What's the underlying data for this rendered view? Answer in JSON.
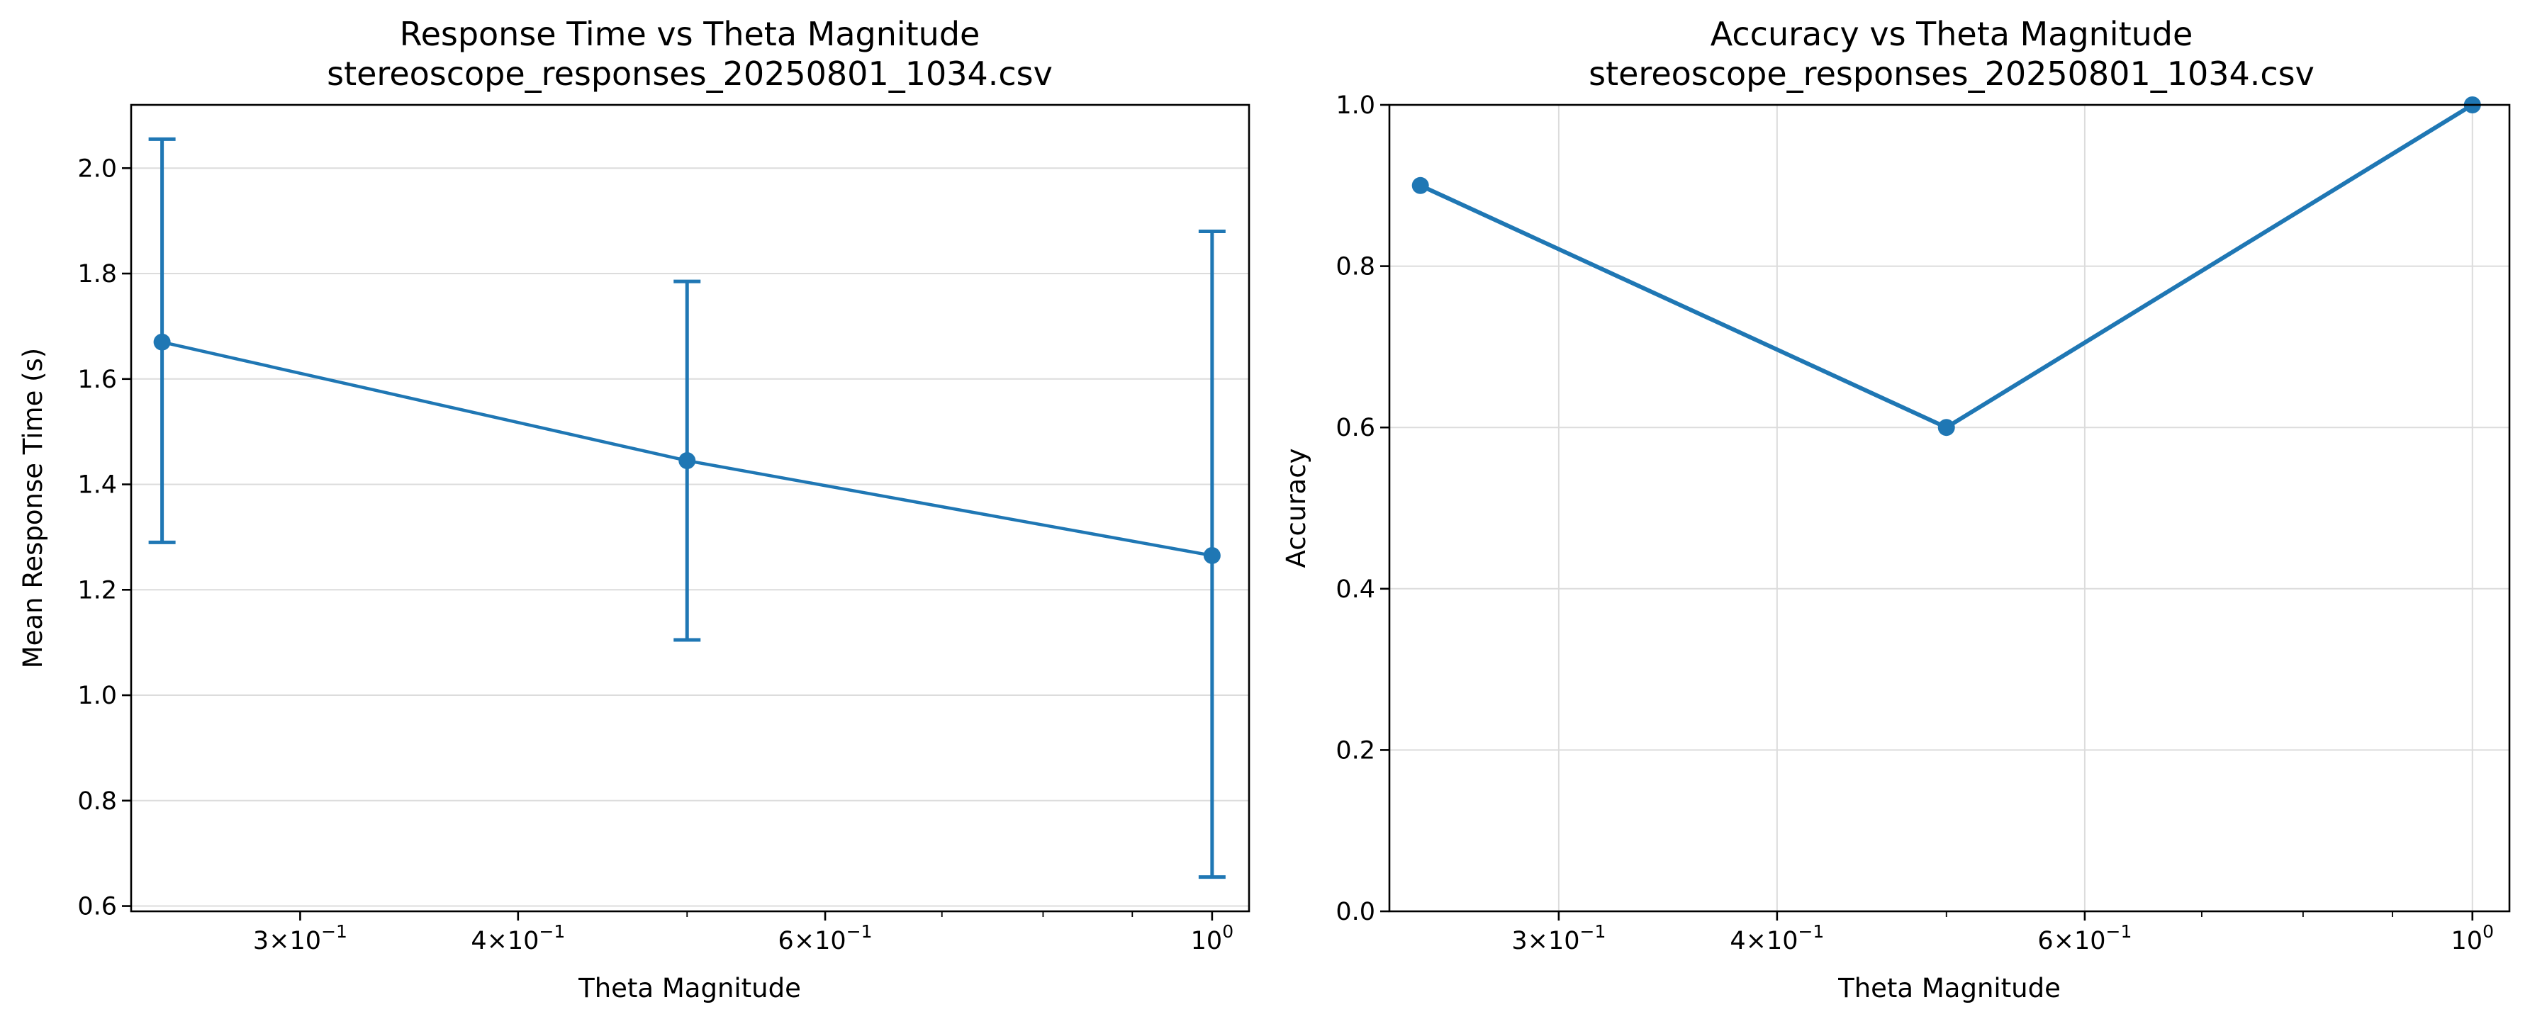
{
  "colors": {
    "series": "#1f77b4",
    "grid": "#dcdcdc",
    "axis": "#000000"
  },
  "chart_data": [
    {
      "type": "line",
      "variant": "errorbar",
      "title": "Response Time vs Theta Magnitude",
      "subtitle": "stereoscope_responses_20250801_1034.csv",
      "xlabel": "Theta Magnitude",
      "ylabel": "Mean Response Time (s)",
      "xscale": "log",
      "xlim": [
        0.24,
        1.05
      ],
      "ylim": [
        0.59,
        2.12
      ],
      "grid": "y-only",
      "x": [
        0.25,
        0.5,
        1.0
      ],
      "y": [
        1.67,
        1.445,
        1.265
      ],
      "error_low": [
        1.29,
        1.105,
        0.655
      ],
      "error_high": [
        2.055,
        1.785,
        1.88
      ],
      "xticks": [
        {
          "value": 0.3,
          "base": "3×10",
          "exp": "−1"
        },
        {
          "value": 0.4,
          "base": "4×10",
          "exp": "−1"
        },
        {
          "value": 0.6,
          "base": "6×10",
          "exp": "−1"
        },
        {
          "value": 1.0,
          "base": "10",
          "exp": "0"
        }
      ],
      "xminor": [
        0.5,
        0.7,
        0.8,
        0.9
      ],
      "yticks": [
        {
          "value": 0.6,
          "label": "0.6"
        },
        {
          "value": 0.8,
          "label": "0.8"
        },
        {
          "value": 1.0,
          "label": "1.0"
        },
        {
          "value": 1.2,
          "label": "1.2"
        },
        {
          "value": 1.4,
          "label": "1.4"
        },
        {
          "value": 1.6,
          "label": "1.6"
        },
        {
          "value": 1.8,
          "label": "1.8"
        },
        {
          "value": 2.0,
          "label": "2.0"
        }
      ]
    },
    {
      "type": "line",
      "title": "Accuracy vs Theta Magnitude",
      "subtitle": "stereoscope_responses_20250801_1034.csv",
      "xlabel": "Theta Magnitude",
      "ylabel": "Accuracy",
      "xscale": "log",
      "xlim": [
        0.24,
        1.05
      ],
      "ylim": [
        0.0,
        1.0
      ],
      "grid": "both",
      "x": [
        0.25,
        0.5,
        1.0
      ],
      "y": [
        0.9,
        0.6,
        1.0
      ],
      "xticks": [
        {
          "value": 0.3,
          "base": "3×10",
          "exp": "−1"
        },
        {
          "value": 0.4,
          "base": "4×10",
          "exp": "−1"
        },
        {
          "value": 0.6,
          "base": "6×10",
          "exp": "−1"
        },
        {
          "value": 1.0,
          "base": "10",
          "exp": "0"
        }
      ],
      "xminor": [
        0.5,
        0.7,
        0.8,
        0.9
      ],
      "yticks": [
        {
          "value": 0.0,
          "label": "0.0"
        },
        {
          "value": 0.2,
          "label": "0.2"
        },
        {
          "value": 0.4,
          "label": "0.4"
        },
        {
          "value": 0.6,
          "label": "0.6"
        },
        {
          "value": 0.8,
          "label": "0.8"
        },
        {
          "value": 1.0,
          "label": "1.0"
        }
      ]
    }
  ]
}
